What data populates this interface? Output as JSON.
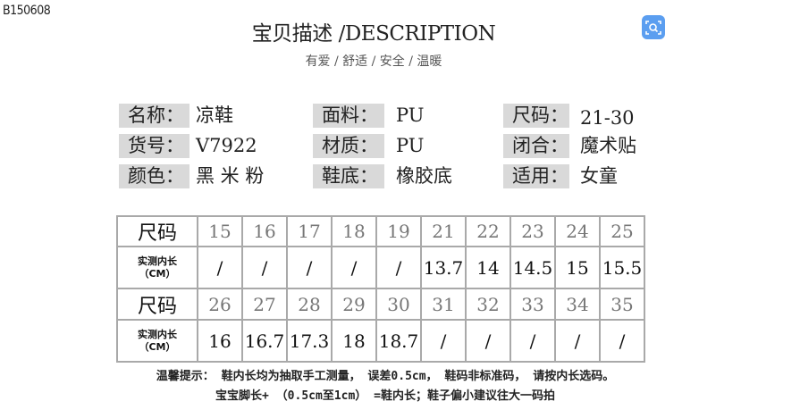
{
  "code": "B150608",
  "title": "宝贝描述 /DESCRIPTION",
  "subtitle": "有爱 / 舒适 / 安全 / 温暖",
  "scan_icon": "scan-search-icon",
  "accent": "#5b9ef0",
  "specs": [
    {
      "label": "名称：",
      "value": "凉鞋"
    },
    {
      "label": "面料：",
      "value": "PU"
    },
    {
      "label": "尺码：",
      "value": "21-30"
    },
    {
      "label": "货号：",
      "value": "V7922"
    },
    {
      "label": "材质：",
      "value": "PU"
    },
    {
      "label": "闭合：",
      "value": "魔术贴"
    },
    {
      "label": "颜色：",
      "value": "黑 米 粉"
    },
    {
      "label": "鞋底：",
      "value": "橡胶底"
    },
    {
      "label": "适用：",
      "value": "女童"
    }
  ],
  "size_table": {
    "size_header": "尺码",
    "length_header": "实测内长",
    "length_unit": "（CM）",
    "rows": [
      {
        "sizes": [
          "15",
          "16",
          "17",
          "18",
          "19",
          "21",
          "22",
          "23",
          "24",
          "25"
        ],
        "lengths": [
          "/",
          "/",
          "/",
          "/",
          "/",
          "13.7",
          "14",
          "14.5",
          "15",
          "15.5"
        ]
      },
      {
        "sizes": [
          "26",
          "27",
          "28",
          "29",
          "30",
          "31",
          "32",
          "33",
          "34",
          "35"
        ],
        "lengths": [
          "16",
          "16.7",
          "17.3",
          "18",
          "18.7",
          "/",
          "/",
          "/",
          "/",
          "/"
        ]
      }
    ]
  },
  "notes": [
    "温馨提示： 鞋内长均为抽取手工测量， 误差0.5cm， 鞋码非标准码， 请按内长选码。",
    "宝宝脚长+ （0.5cm至1cm） =鞋内长；鞋子偏小建议往大一码拍"
  ]
}
